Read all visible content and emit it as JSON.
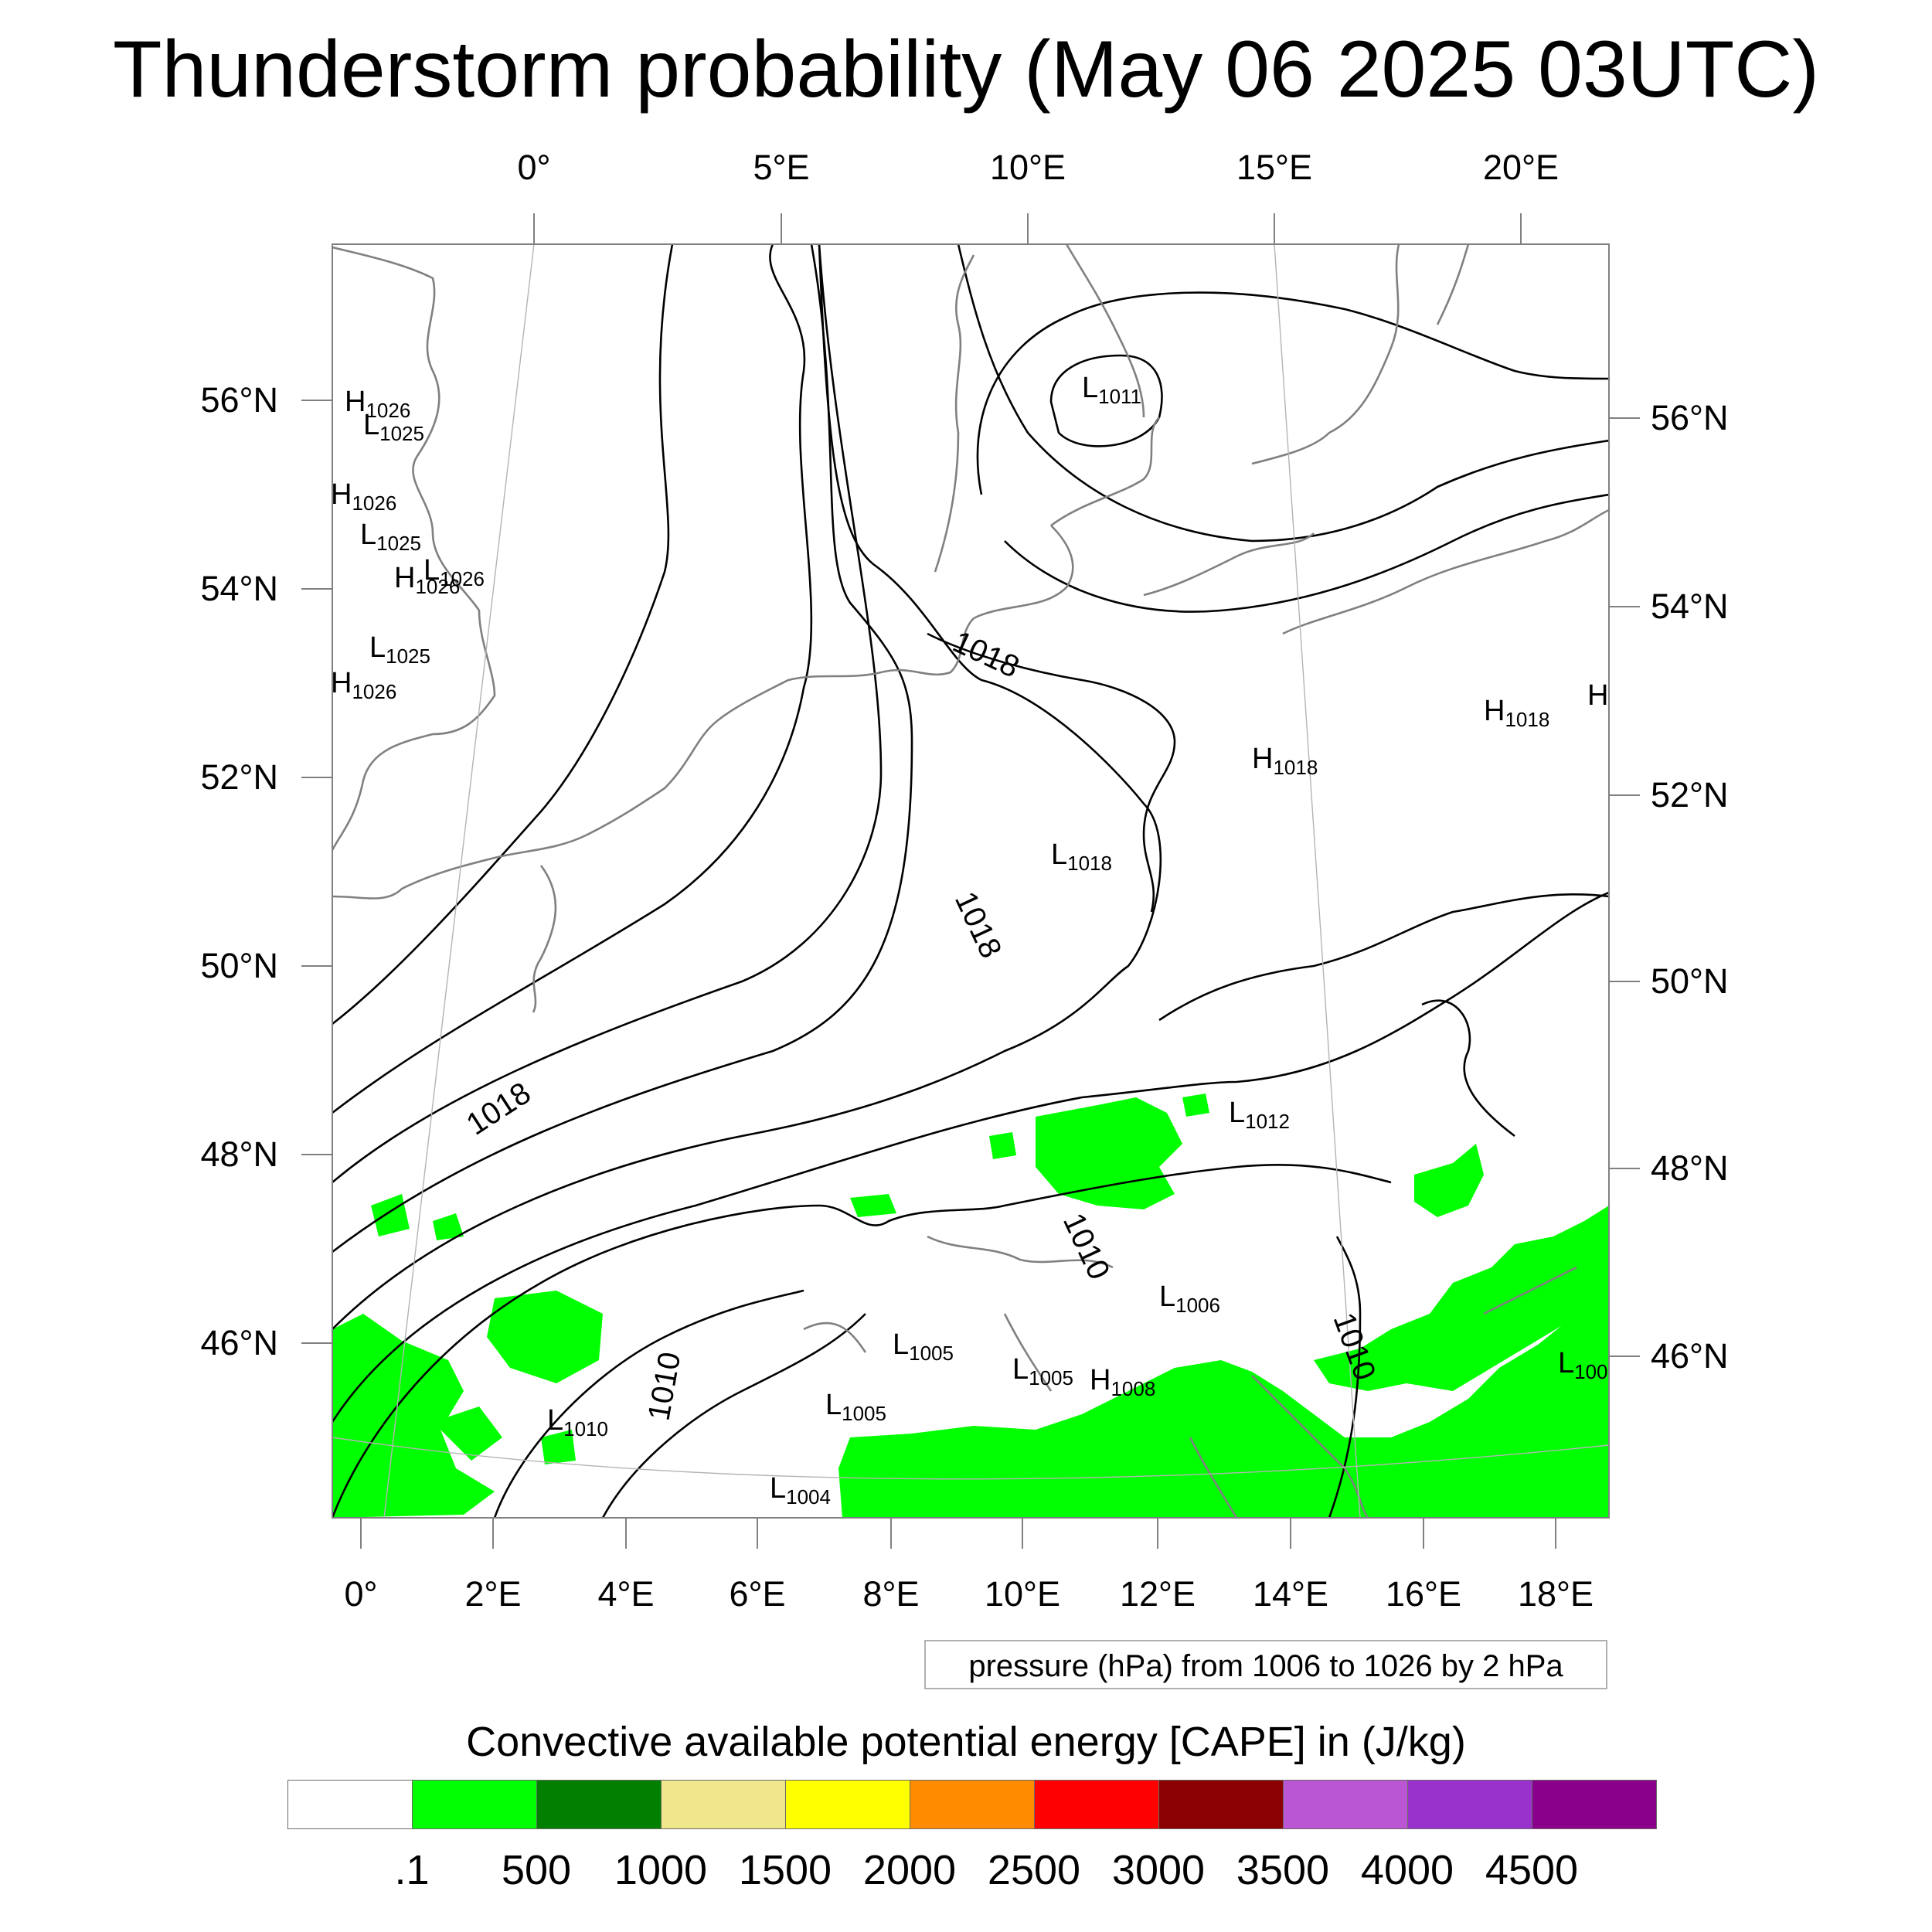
{
  "title": "Thunderstorm probability (May 06 2025 03UTC)",
  "axes": {
    "top_lon": [
      "0°",
      "5°E",
      "10°E",
      "15°E",
      "20°E"
    ],
    "bottom_lon": [
      "0°",
      "2°E",
      "4°E",
      "6°E",
      "8°E",
      "10°E",
      "12°E",
      "14°E",
      "16°E",
      "18°E"
    ],
    "left_lat": [
      "56°N",
      "54°N",
      "52°N",
      "50°N",
      "48°N",
      "46°N"
    ],
    "right_lat": [
      "56°N",
      "54°N",
      "52°N",
      "50°N",
      "48°N",
      "46°N"
    ]
  },
  "contour_labels": [
    "1018",
    "1018",
    "1018",
    "1010",
    "1010",
    "1010"
  ],
  "pressure_centers": [
    {
      "type": "H",
      "value": "1026"
    },
    {
      "type": "L",
      "value": "1025"
    },
    {
      "type": "H",
      "value": "1026"
    },
    {
      "type": "L",
      "value": "1025"
    },
    {
      "type": "H",
      "value": "1026"
    },
    {
      "type": "L",
      "value": "1026"
    },
    {
      "type": "L",
      "value": "1025"
    },
    {
      "type": "H",
      "value": "1026"
    },
    {
      "type": "L",
      "value": "1011"
    },
    {
      "type": "H",
      "value": "1018"
    },
    {
      "type": "H",
      "value": "1018"
    },
    {
      "type": "H",
      "value": ""
    },
    {
      "type": "L",
      "value": "1018"
    },
    {
      "type": "L",
      "value": "1012"
    },
    {
      "type": "L",
      "value": "1006"
    },
    {
      "type": "L",
      "value": "1005"
    },
    {
      "type": "L",
      "value": "1005"
    },
    {
      "type": "H",
      "value": "1008"
    },
    {
      "type": "L",
      "value": "1005"
    },
    {
      "type": "L",
      "value": "1010"
    },
    {
      "type": "L",
      "value": "1004"
    },
    {
      "type": "L",
      "value": "100"
    }
  ],
  "contour_note": "pressure (hPa) from 1006 to 1026 by 2 hPa",
  "colorbar": {
    "title": "Convective available potential energy [CAPE] in (J/kg)",
    "colors": [
      "#ffffff",
      "#00ff00",
      "#007f00",
      "#f0e68c",
      "#ffff00",
      "#ff8c00",
      "#ff0000",
      "#8b0000",
      "#ba55d3",
      "#9932cc",
      "#8b008b"
    ],
    "ticks": [
      ".1",
      "500",
      "1000",
      "1500",
      "2000",
      "2500",
      "3000",
      "3500",
      "4000",
      "4500"
    ]
  },
  "map_data": {
    "type": "contour-map",
    "fill_variable": "CAPE (J/kg)",
    "contour_variable": "pressure (hPa)",
    "contour_min": 1006,
    "contour_max": 1026,
    "contour_interval": 2,
    "lon_range_bottom": [
      0,
      18
    ],
    "lat_range": [
      46,
      56
    ]
  }
}
